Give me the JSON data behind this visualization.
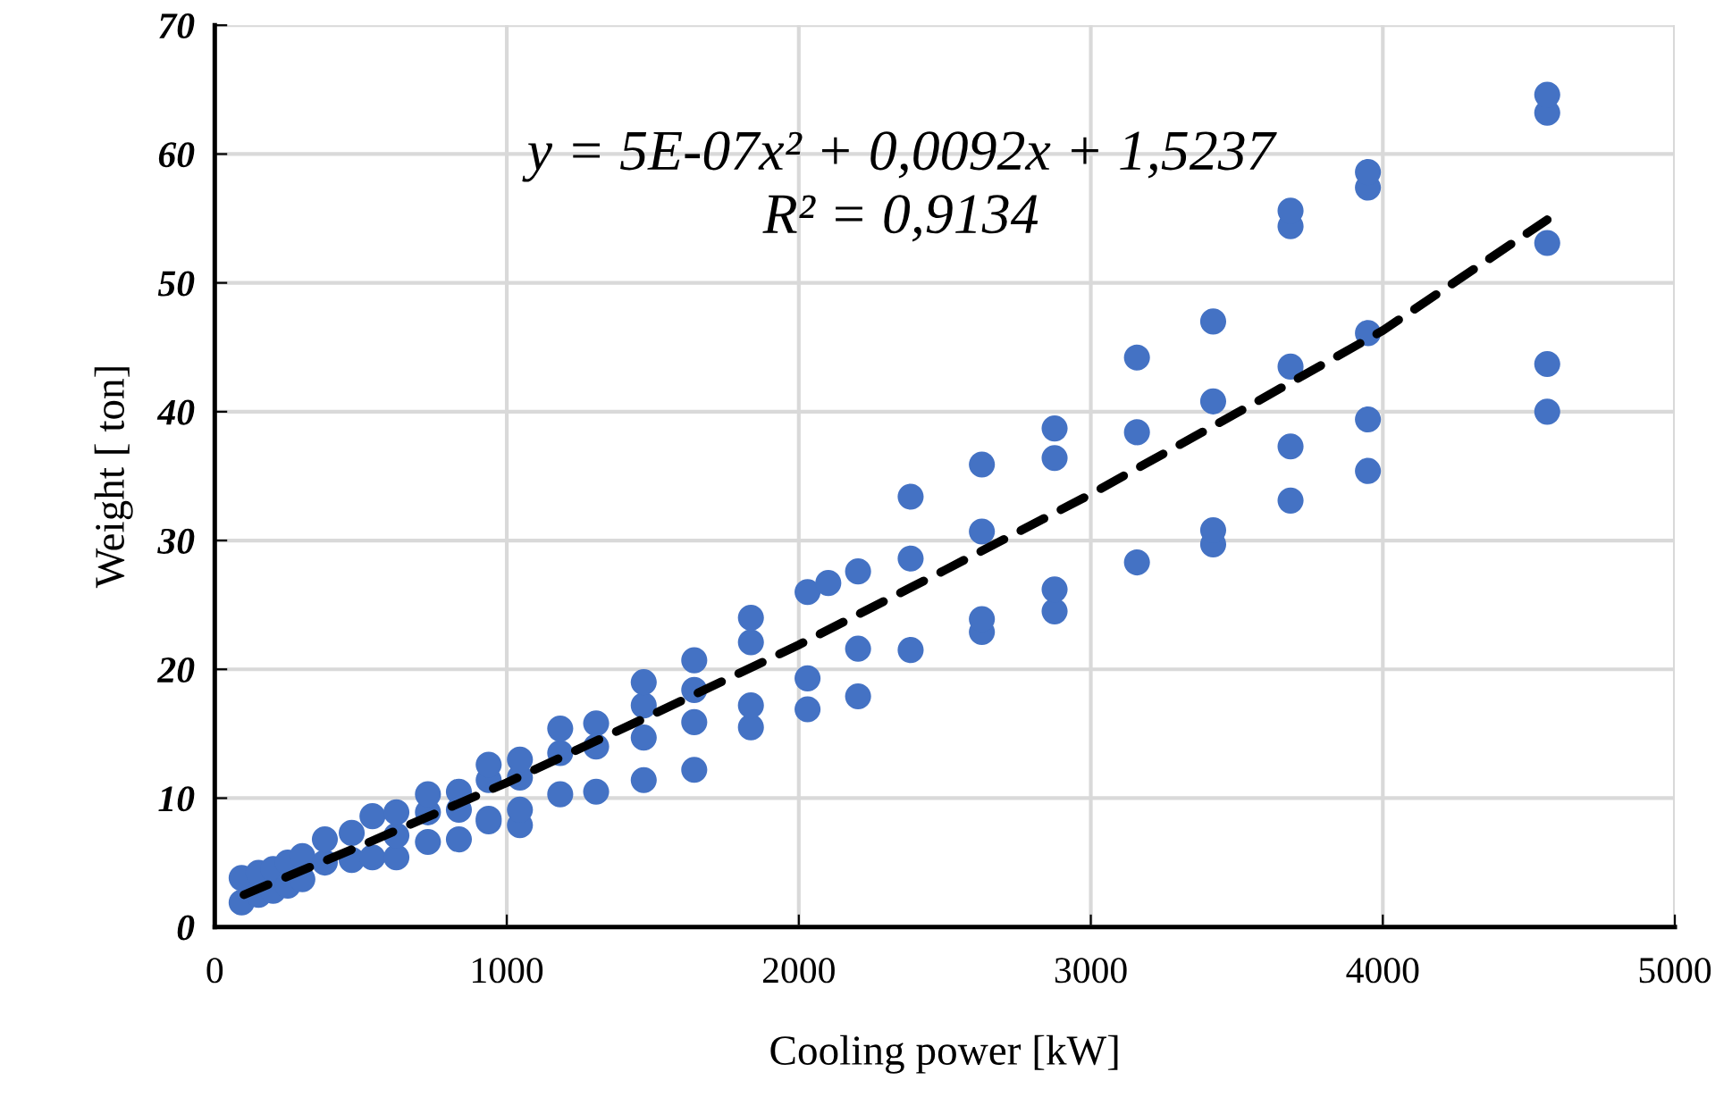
{
  "chart_data": {
    "type": "scatter",
    "xlabel": "Cooling power [kW]",
    "ylabel": "Weight [ ton]",
    "annotations": [
      "y = 5E-07x² + 0,0092x + 1,5237",
      "R² = 0,9134"
    ],
    "xlim": [
      0,
      5000
    ],
    "xticks": [
      0,
      1000,
      2000,
      3000,
      4000,
      5000
    ],
    "ylim": [
      0,
      70
    ],
    "yticks": [
      0,
      10,
      20,
      30,
      40,
      50,
      60,
      70
    ],
    "grid": true,
    "marker": "circle",
    "tick_labels": "xy",
    "series": [
      {
        "color": "#4472c4",
        "x": [
          92,
          92,
          150,
          150,
          200,
          200,
          250,
          250,
          300,
          300,
          377,
          377,
          469,
          469,
          540,
          540,
          622,
          622,
          622,
          730,
          730,
          730,
          836,
          836,
          836,
          938,
          938,
          938,
          938,
          1045,
          1045,
          1045,
          1045,
          1183,
          1183,
          1183,
          1306,
          1306,
          1306,
          1469,
          1469,
          1469,
          1469,
          1642,
          1642,
          1642,
          1642,
          1836,
          1836,
          1836,
          1836,
          2030,
          2030,
          2030,
          2101,
          2203,
          2203,
          2203,
          2383,
          2383,
          2383,
          2627,
          2627,
          2627,
          2627,
          2876,
          2876,
          2876,
          2876,
          3158,
          3158,
          3158,
          3419,
          3419,
          3419,
          3419,
          3684,
          3684,
          3684,
          3684,
          3684,
          3949,
          3949,
          3949,
          3949,
          3949,
          4563,
          4563,
          4563,
          4563,
          4563
        ],
        "values": [
          3.8,
          1.9,
          2.5,
          4.2,
          2.8,
          4.5,
          3.2,
          5.0,
          3.7,
          5.5,
          5.0,
          6.8,
          5.2,
          7.3,
          5.4,
          8.6,
          5.4,
          7.1,
          8.9,
          6.6,
          8.9,
          10.3,
          6.8,
          9.1,
          10.5,
          8.2,
          8.4,
          11.4,
          12.6,
          7.9,
          9.1,
          11.6,
          13.0,
          10.3,
          13.5,
          15.4,
          10.5,
          14.0,
          15.8,
          11.4,
          14.7,
          17.2,
          19.0,
          12.2,
          15.9,
          18.4,
          20.7,
          15.5,
          17.2,
          22.1,
          24.0,
          16.9,
          19.3,
          26.0,
          26.7,
          17.9,
          21.6,
          27.6,
          21.5,
          28.6,
          33.4,
          22.9,
          23.9,
          30.7,
          35.9,
          24.5,
          26.2,
          36.4,
          38.7,
          28.3,
          38.4,
          44.2,
          29.7,
          30.8,
          40.8,
          47.0,
          33.1,
          37.3,
          43.5,
          54.4,
          55.6,
          35.4,
          39.4,
          46.1,
          57.4,
          58.6,
          40.0,
          43.7,
          53.1,
          63.2,
          64.6
        ]
      },
      {
        "type": "line",
        "color": "#000000",
        "line_style": "dashed",
        "marker": "none",
        "x": [
          100,
          500,
          1000,
          1500,
          2000,
          2500,
          3000,
          3500,
          4000,
          4563
        ],
        "values": [
          2.5,
          6.3,
          11.2,
          16.5,
          21.9,
          27.7,
          33.6,
          39.9,
          46.3,
          54.9
        ]
      }
    ]
  }
}
